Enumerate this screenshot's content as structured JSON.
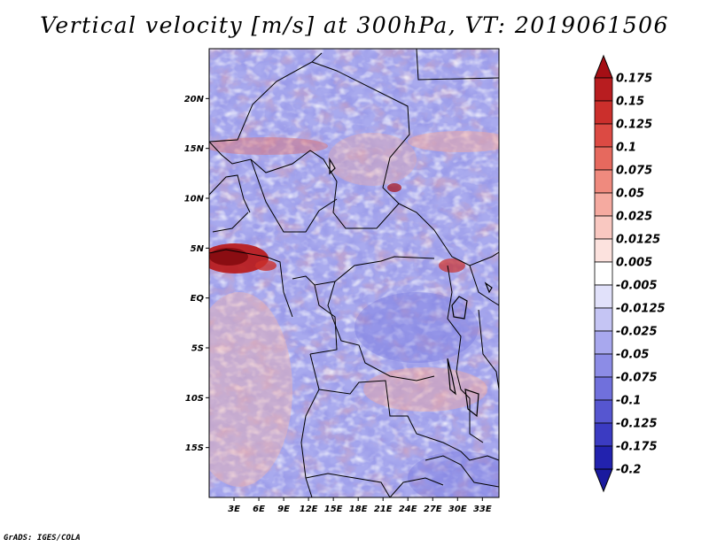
{
  "title": "Vertical velocity [m/s] at 300hPa, VT: 2019061506",
  "credit": "GrADS: IGES/COLA",
  "map": {
    "lon_range": [
      0,
      35
    ],
    "lat_range": [
      -20,
      25
    ],
    "lat_ticks": [
      {
        "value": 20,
        "label": "20N"
      },
      {
        "value": 15,
        "label": "15N"
      },
      {
        "value": 10,
        "label": "10N"
      },
      {
        "value": 5,
        "label": "5N"
      },
      {
        "value": 0,
        "label": "EQ"
      },
      {
        "value": -5,
        "label": "5S"
      },
      {
        "value": -10,
        "label": "10S"
      },
      {
        "value": -15,
        "label": "15S"
      }
    ],
    "lon_ticks": [
      {
        "value": 3,
        "label": "3E"
      },
      {
        "value": 6,
        "label": "6E"
      },
      {
        "value": 9,
        "label": "9E"
      },
      {
        "value": 12,
        "label": "12E"
      },
      {
        "value": 15,
        "label": "15E"
      },
      {
        "value": 18,
        "label": "18E"
      },
      {
        "value": 21,
        "label": "21E"
      },
      {
        "value": 24,
        "label": "24E"
      },
      {
        "value": 27,
        "label": "27E"
      },
      {
        "value": 30,
        "label": "30E"
      },
      {
        "value": 33,
        "label": "33E"
      }
    ]
  },
  "colorbar": {
    "levels": [
      {
        "label": "0.175",
        "color": "#a50f15"
      },
      {
        "label": "0.15",
        "color": "#b81d20"
      },
      {
        "label": "0.125",
        "color": "#cb2f2c"
      },
      {
        "label": "0.1",
        "color": "#dc4a43"
      },
      {
        "label": "0.075",
        "color": "#e6695e"
      },
      {
        "label": "0.05",
        "color": "#ef8a7e"
      },
      {
        "label": "0.025",
        "color": "#f5aaa0"
      },
      {
        "label": "0.0125",
        "color": "#f9c8c1"
      },
      {
        "label": "0.005",
        "color": "#fce2de"
      },
      {
        "label": "-0.005",
        "color": "#ffffff"
      },
      {
        "label": "-0.0125",
        "color": "#e1e1fa"
      },
      {
        "label": "-0.025",
        "color": "#c5c5f4"
      },
      {
        "label": "-0.05",
        "color": "#a8a8ee"
      },
      {
        "label": "-0.075",
        "color": "#8c8ce6"
      },
      {
        "label": "-0.1",
        "color": "#7070dc"
      },
      {
        "label": "-0.125",
        "color": "#5656d0"
      },
      {
        "label": "-0.175",
        "color": "#3b3bc2"
      },
      {
        "label": "-0.2",
        "color": "#2222ae"
      }
    ],
    "top_color": "#a50f15",
    "bottom_color": "#1a1a9e"
  }
}
